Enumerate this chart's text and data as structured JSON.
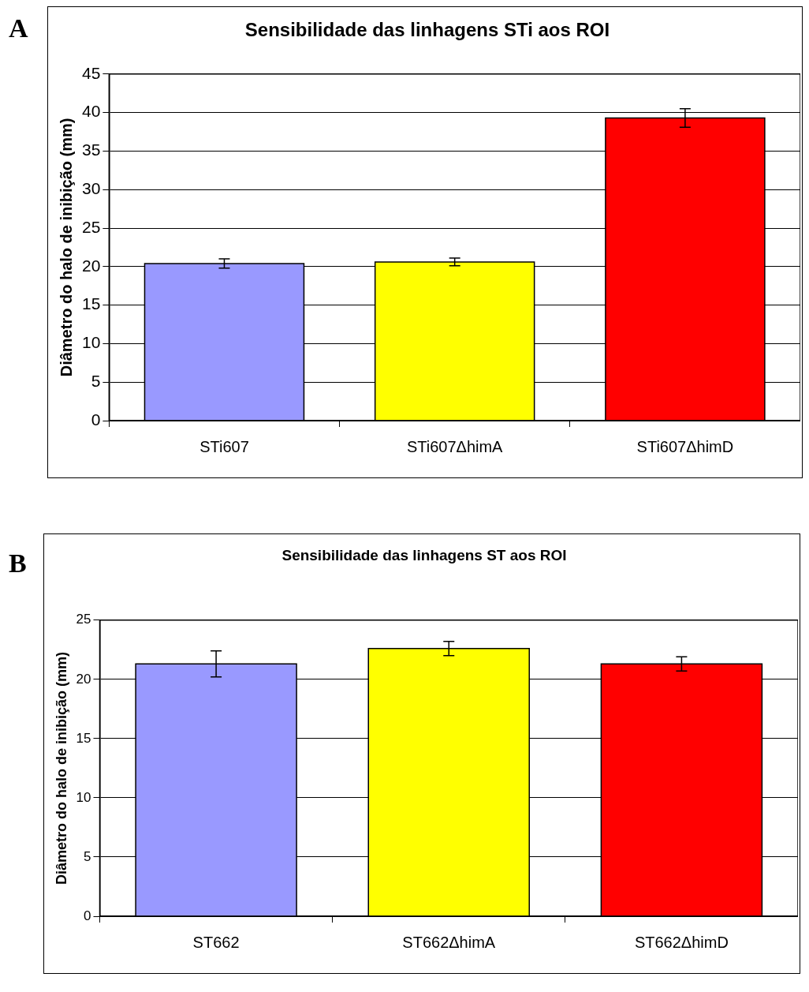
{
  "chart_data": [
    {
      "type": "bar",
      "title": "Sensibilidade das linhagens STi aos ROI",
      "ylabel": "Diâmetro do halo de inibição (mm)",
      "annotations": [
        "A"
      ],
      "categories": [
        "STi607",
        "STi607ΔhimA",
        "STi607ΔhimD"
      ],
      "values": [
        20.4,
        20.6,
        39.3
      ],
      "errors": [
        0.6,
        0.5,
        1.2
      ],
      "colors": [
        "#9999ff",
        "#ffff00",
        "#ff0000"
      ],
      "ylim": [
        0,
        45
      ],
      "yticks": [
        0,
        5,
        10,
        15,
        20,
        25,
        30,
        35,
        40,
        45
      ],
      "grid": "y",
      "legend": false
    },
    {
      "type": "bar",
      "title": "Sensibilidade das linhagens ST aos ROI",
      "ylabel": "Diâmetro do halo de inibição (mm)",
      "annotations": [
        "B"
      ],
      "categories": [
        "ST662",
        "ST662ΔhimA",
        "ST662ΔhimD"
      ],
      "values": [
        21.3,
        22.6,
        21.3
      ],
      "errors": [
        1.1,
        0.6,
        0.6
      ],
      "colors": [
        "#9999ff",
        "#ffff00",
        "#ff0000"
      ],
      "ylim": [
        0,
        25
      ],
      "yticks": [
        0,
        5,
        10,
        15,
        20,
        25
      ],
      "grid": "y",
      "legend": false
    }
  ]
}
